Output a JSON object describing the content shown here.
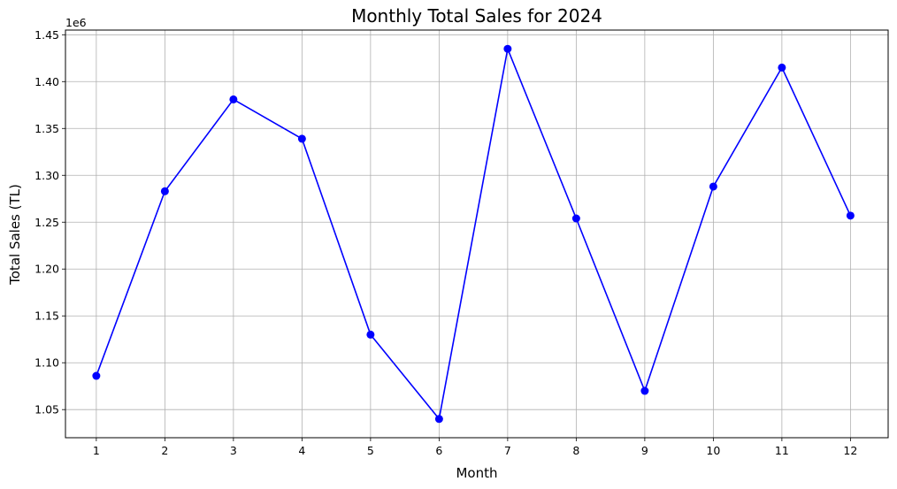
{
  "chart_data": {
    "type": "line",
    "title": "Monthly Total Sales for 2024",
    "xlabel": "Month",
    "ylabel": "Total Sales (TL)",
    "y_offset_label": "1e6",
    "x": [
      1,
      2,
      3,
      4,
      5,
      6,
      7,
      8,
      9,
      10,
      11,
      12
    ],
    "x_tick_labels": [
      "1",
      "2",
      "3",
      "4",
      "5",
      "6",
      "7",
      "8",
      "9",
      "10",
      "11",
      "12"
    ],
    "series": [
      {
        "values": [
          1086000,
          1283000,
          1381000,
          1339000,
          1130000,
          1040000,
          1435000,
          1254000,
          1070000,
          1288000,
          1415000,
          1257000
        ],
        "color": "#0000ff",
        "marker": "circle"
      }
    ],
    "y_ticks": [
      1.05,
      1.1,
      1.15,
      1.2,
      1.25,
      1.3,
      1.35,
      1.4,
      1.45
    ],
    "y_tick_labels": [
      "1.05",
      "1.10",
      "1.15",
      "1.20",
      "1.25",
      "1.30",
      "1.35",
      "1.40",
      "1.45"
    ],
    "xlim": [
      0.55,
      12.55
    ],
    "ylim": [
      1020000,
      1455000
    ],
    "grid": true
  }
}
